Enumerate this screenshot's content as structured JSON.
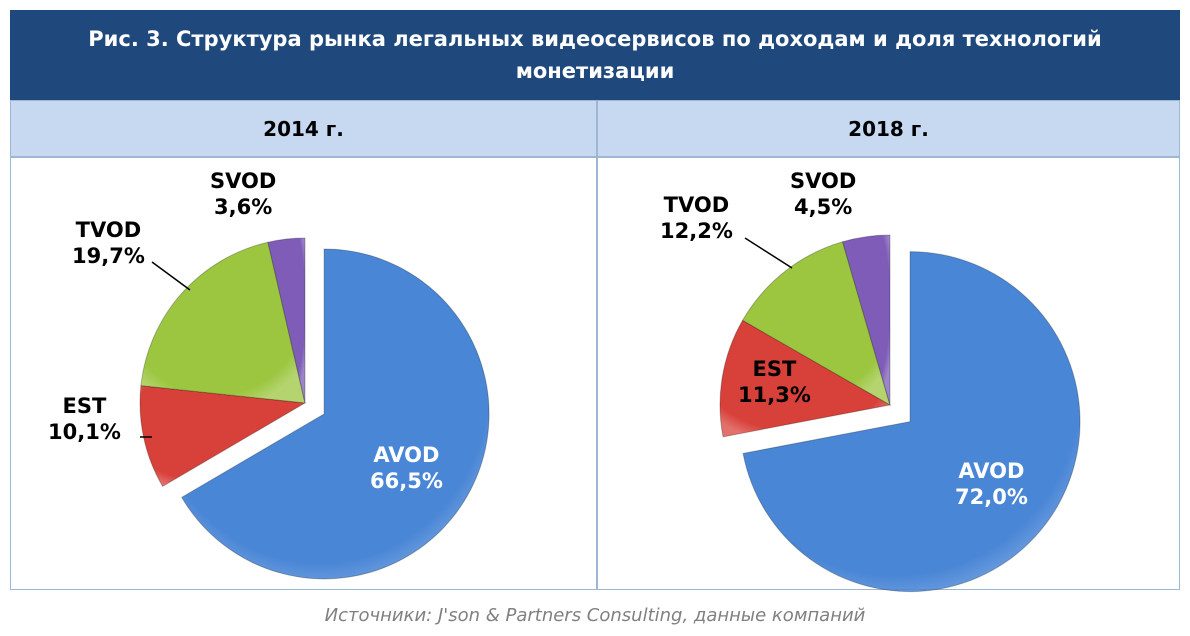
{
  "title": "Рис. 3. Структура рынка  легальных видеосервисов по доходам и доля технологий монетизации",
  "source": "Источники: J'son & Partners Consulting, данные компаний",
  "colors": {
    "AVOD": "#4a86d6",
    "EST": "#d8403a",
    "TVOD": "#9cc640",
    "SVOD": "#7e5cb8"
  },
  "chart_data": [
    {
      "type": "pie",
      "title": "2014 г.",
      "labels": [
        "AVOD",
        "EST",
        "TVOD",
        "SVOD"
      ],
      "values": [
        66.5,
        10.1,
        19.7,
        3.6
      ],
      "value_labels": [
        "66,5%",
        "10,1%",
        "19,7%",
        "3,6%"
      ],
      "exploded": "AVOD"
    },
    {
      "type": "pie",
      "title": "2018 г.",
      "labels": [
        "AVOD",
        "EST",
        "TVOD",
        "SVOD"
      ],
      "values": [
        72.0,
        11.3,
        12.2,
        4.5
      ],
      "value_labels": [
        "72,0%",
        "11,3%",
        "12,2%",
        "4,5%"
      ],
      "exploded": "AVOD"
    }
  ]
}
